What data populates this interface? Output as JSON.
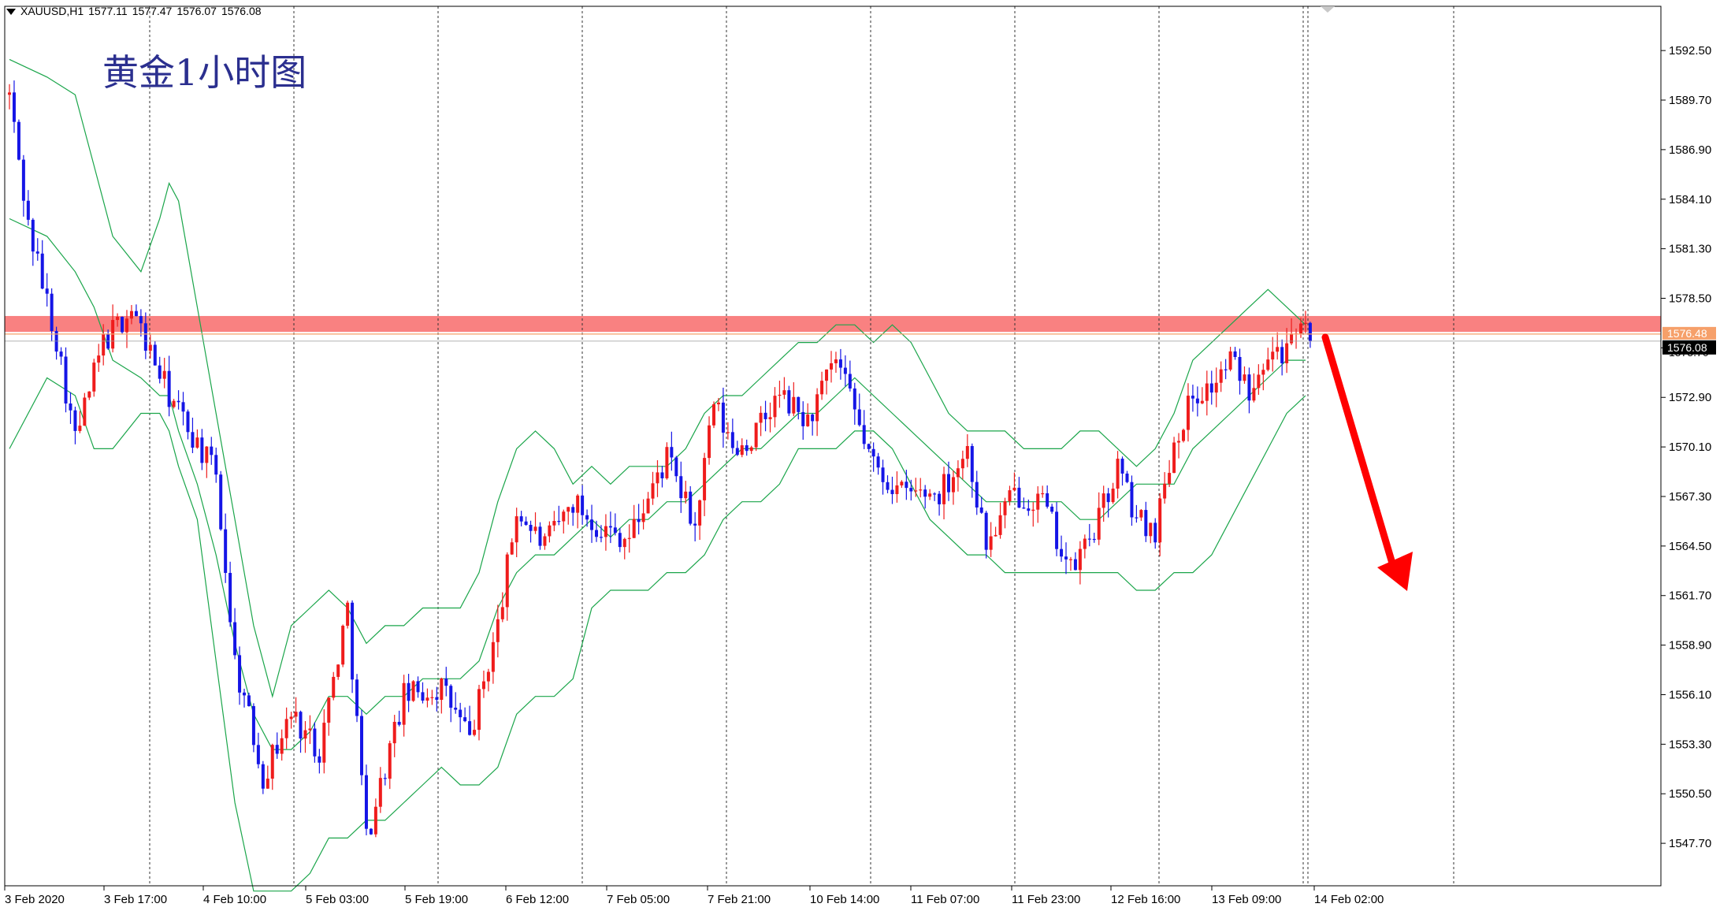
{
  "header": {
    "symbol": "XAUUSD,H1",
    "open": "1577.11",
    "high": "1577.47",
    "low": "1576.07",
    "close": "1576.08"
  },
  "title": "黄金1小时图",
  "colors": {
    "bull": "#ef1c1c",
    "bear": "#1515e6",
    "band": "#1aa54a",
    "zone": "#f98181",
    "price_line": "#f6a06a",
    "arrow": "#ff0000",
    "grid": "#333333"
  },
  "price_labels": {
    "upper": "1576.48",
    "current": "1576.08",
    "below": "1575.70"
  },
  "chart_data": {
    "type": "candlestick",
    "ylim": [
      1545.3,
      1595.0
    ],
    "y_ticks": [
      1592.5,
      1589.7,
      1586.9,
      1584.1,
      1581.3,
      1578.5,
      1575.7,
      1572.9,
      1570.1,
      1567.3,
      1564.5,
      1561.7,
      1558.9,
      1556.1,
      1553.3,
      1550.5,
      1547.7
    ],
    "x_ticks": [
      "3 Feb 2020",
      "3 Feb 17:00",
      "4 Feb 10:00",
      "5 Feb 03:00",
      "5 Feb 19:00",
      "6 Feb 12:00",
      "7 Feb 05:00",
      "7 Feb 21:00",
      "10 Feb 14:00",
      "11 Feb 07:00",
      "11 Feb 23:00",
      "12 Feb 16:00",
      "13 Feb 09:00",
      "14 Feb 02:00"
    ],
    "resistance_zone": [
      1576.6,
      1577.5
    ],
    "current_price": 1576.08,
    "anchors": [
      {
        "i": 0,
        "v": 1590.0
      },
      {
        "i": 4,
        "v": 1582.6
      },
      {
        "i": 10,
        "v": 1576.2
      },
      {
        "i": 14,
        "v": 1570.5
      },
      {
        "i": 20,
        "v": 1576.0
      },
      {
        "i": 26,
        "v": 1577.9
      },
      {
        "i": 34,
        "v": 1573.0
      },
      {
        "i": 44,
        "v": 1568.5
      },
      {
        "i": 48,
        "v": 1558.0
      },
      {
        "i": 54,
        "v": 1551.5
      },
      {
        "i": 60,
        "v": 1555.0
      },
      {
        "i": 66,
        "v": 1553.0
      },
      {
        "i": 72,
        "v": 1561.0
      },
      {
        "i": 76,
        "v": 1548.0
      },
      {
        "i": 84,
        "v": 1556.0
      },
      {
        "i": 92,
        "v": 1556.5
      },
      {
        "i": 98,
        "v": 1553.6
      },
      {
        "i": 104,
        "v": 1560.0
      },
      {
        "i": 108,
        "v": 1566.5
      },
      {
        "i": 114,
        "v": 1564.5
      },
      {
        "i": 120,
        "v": 1567.0
      },
      {
        "i": 126,
        "v": 1565.5
      },
      {
        "i": 132,
        "v": 1565.0
      },
      {
        "i": 140,
        "v": 1569.5
      },
      {
        "i": 146,
        "v": 1565.5
      },
      {
        "i": 150,
        "v": 1572.5
      },
      {
        "i": 154,
        "v": 1570.0
      },
      {
        "i": 158,
        "v": 1570.5
      },
      {
        "i": 164,
        "v": 1573.0
      },
      {
        "i": 170,
        "v": 1571.5
      },
      {
        "i": 176,
        "v": 1575.0
      },
      {
        "i": 180,
        "v": 1572.0
      },
      {
        "i": 184,
        "v": 1569.0
      },
      {
        "i": 190,
        "v": 1567.5
      },
      {
        "i": 198,
        "v": 1567.5
      },
      {
        "i": 204,
        "v": 1570.0
      },
      {
        "i": 208,
        "v": 1564.5
      },
      {
        "i": 214,
        "v": 1567.5
      },
      {
        "i": 220,
        "v": 1567.0
      },
      {
        "i": 226,
        "v": 1563.0
      },
      {
        "i": 232,
        "v": 1566.0
      },
      {
        "i": 236,
        "v": 1569.0
      },
      {
        "i": 240,
        "v": 1566.0
      },
      {
        "i": 244,
        "v": 1565.5
      },
      {
        "i": 248,
        "v": 1570.5
      },
      {
        "i": 252,
        "v": 1573.0
      },
      {
        "i": 256,
        "v": 1573.5
      },
      {
        "i": 260,
        "v": 1575.0
      },
      {
        "i": 264,
        "v": 1573.5
      },
      {
        "i": 268,
        "v": 1575.8
      },
      {
        "i": 272,
        "v": 1575.5
      },
      {
        "i": 276,
        "v": 1576.6
      },
      {
        "i": 277,
        "v": 1576.08
      }
    ],
    "bands": {
      "upper": [
        [
          0,
          1592
        ],
        [
          8,
          1591
        ],
        [
          14,
          1590
        ],
        [
          18,
          1586
        ],
        [
          22,
          1582
        ],
        [
          28,
          1580
        ],
        [
          32,
          1583
        ],
        [
          34,
          1585
        ],
        [
          36,
          1584
        ],
        [
          40,
          1578
        ],
        [
          44,
          1572
        ],
        [
          48,
          1566
        ],
        [
          52,
          1560
        ],
        [
          56,
          1556
        ],
        [
          60,
          1560
        ],
        [
          64,
          1561
        ],
        [
          68,
          1562
        ],
        [
          72,
          1561
        ],
        [
          76,
          1559
        ],
        [
          80,
          1560
        ],
        [
          84,
          1560
        ],
        [
          88,
          1561
        ],
        [
          92,
          1561
        ],
        [
          96,
          1561
        ],
        [
          100,
          1563
        ],
        [
          104,
          1567
        ],
        [
          108,
          1570
        ],
        [
          112,
          1571
        ],
        [
          116,
          1570
        ],
        [
          120,
          1568
        ],
        [
          124,
          1569
        ],
        [
          128,
          1568
        ],
        [
          132,
          1569
        ],
        [
          136,
          1569
        ],
        [
          140,
          1569
        ],
        [
          144,
          1570
        ],
        [
          148,
          1572
        ],
        [
          152,
          1573
        ],
        [
          156,
          1573
        ],
        [
          160,
          1574
        ],
        [
          164,
          1575
        ],
        [
          168,
          1576
        ],
        [
          172,
          1576
        ],
        [
          176,
          1577
        ],
        [
          180,
          1577
        ],
        [
          184,
          1576
        ],
        [
          188,
          1577
        ],
        [
          192,
          1576
        ],
        [
          196,
          1574
        ],
        [
          200,
          1572
        ],
        [
          204,
          1571
        ],
        [
          208,
          1571
        ],
        [
          212,
          1571
        ],
        [
          216,
          1570
        ],
        [
          220,
          1570
        ],
        [
          224,
          1570
        ],
        [
          228,
          1571
        ],
        [
          232,
          1571
        ],
        [
          236,
          1570
        ],
        [
          240,
          1569
        ],
        [
          244,
          1570
        ],
        [
          248,
          1572
        ],
        [
          252,
          1575
        ],
        [
          256,
          1576
        ],
        [
          260,
          1577
        ],
        [
          264,
          1578
        ],
        [
          268,
          1579
        ],
        [
          272,
          1578
        ],
        [
          276,
          1577
        ]
      ],
      "mid": [
        [
          0,
          1583
        ],
        [
          8,
          1582
        ],
        [
          14,
          1580
        ],
        [
          18,
          1578
        ],
        [
          22,
          1575
        ],
        [
          28,
          1574
        ],
        [
          32,
          1573
        ],
        [
          34,
          1573
        ],
        [
          36,
          1571
        ],
        [
          40,
          1568
        ],
        [
          44,
          1564
        ],
        [
          48,
          1559
        ],
        [
          52,
          1555
        ],
        [
          56,
          1553
        ],
        [
          60,
          1553
        ],
        [
          64,
          1554
        ],
        [
          68,
          1556
        ],
        [
          72,
          1556
        ],
        [
          76,
          1555
        ],
        [
          80,
          1556
        ],
        [
          84,
          1556
        ],
        [
          88,
          1557
        ],
        [
          92,
          1557
        ],
        [
          96,
          1557
        ],
        [
          100,
          1558
        ],
        [
          104,
          1561
        ],
        [
          108,
          1563
        ],
        [
          112,
          1564
        ],
        [
          116,
          1564
        ],
        [
          120,
          1565
        ],
        [
          124,
          1566
        ],
        [
          128,
          1565
        ],
        [
          132,
          1566
        ],
        [
          136,
          1566
        ],
        [
          140,
          1567
        ],
        [
          144,
          1567
        ],
        [
          148,
          1568
        ],
        [
          152,
          1569
        ],
        [
          156,
          1570
        ],
        [
          160,
          1570
        ],
        [
          164,
          1571
        ],
        [
          168,
          1572
        ],
        [
          172,
          1572
        ],
        [
          176,
          1573
        ],
        [
          180,
          1574
        ],
        [
          184,
          1573
        ],
        [
          188,
          1572
        ],
        [
          192,
          1571
        ],
        [
          196,
          1570
        ],
        [
          200,
          1569
        ],
        [
          204,
          1568
        ],
        [
          208,
          1567
        ],
        [
          212,
          1567
        ],
        [
          216,
          1567
        ],
        [
          220,
          1567
        ],
        [
          224,
          1567
        ],
        [
          228,
          1566
        ],
        [
          232,
          1566
        ],
        [
          236,
          1567
        ],
        [
          240,
          1568
        ],
        [
          244,
          1568
        ],
        [
          248,
          1568
        ],
        [
          252,
          1570
        ],
        [
          256,
          1571
        ],
        [
          260,
          1572
        ],
        [
          264,
          1573
        ],
        [
          268,
          1574
        ],
        [
          272,
          1575
        ],
        [
          276,
          1575
        ]
      ],
      "lower": [
        [
          0,
          1570
        ],
        [
          8,
          1574
        ],
        [
          14,
          1573
        ],
        [
          18,
          1570
        ],
        [
          22,
          1570
        ],
        [
          28,
          1572
        ],
        [
          32,
          1572
        ],
        [
          34,
          1571
        ],
        [
          36,
          1569
        ],
        [
          40,
          1566
        ],
        [
          44,
          1558
        ],
        [
          48,
          1550
        ],
        [
          52,
          1545
        ],
        [
          56,
          1545
        ],
        [
          60,
          1545
        ],
        [
          64,
          1546
        ],
        [
          68,
          1548
        ],
        [
          72,
          1548
        ],
        [
          76,
          1549
        ],
        [
          80,
          1549
        ],
        [
          84,
          1550
        ],
        [
          88,
          1551
        ],
        [
          92,
          1552
        ],
        [
          96,
          1551
        ],
        [
          100,
          1551
        ],
        [
          104,
          1552
        ],
        [
          108,
          1555
        ],
        [
          112,
          1556
        ],
        [
          116,
          1556
        ],
        [
          120,
          1557
        ],
        [
          124,
          1561
        ],
        [
          128,
          1562
        ],
        [
          132,
          1562
        ],
        [
          136,
          1562
        ],
        [
          140,
          1563
        ],
        [
          144,
          1563
        ],
        [
          148,
          1564
        ],
        [
          152,
          1566
        ],
        [
          156,
          1567
        ],
        [
          160,
          1567
        ],
        [
          164,
          1568
        ],
        [
          168,
          1570
        ],
        [
          172,
          1570
        ],
        [
          176,
          1570
        ],
        [
          180,
          1571
        ],
        [
          184,
          1571
        ],
        [
          188,
          1570
        ],
        [
          192,
          1568
        ],
        [
          196,
          1566
        ],
        [
          200,
          1565
        ],
        [
          204,
          1564
        ],
        [
          208,
          1564
        ],
        [
          212,
          1563
        ],
        [
          216,
          1563
        ],
        [
          220,
          1563
        ],
        [
          224,
          1563
        ],
        [
          228,
          1563
        ],
        [
          232,
          1563
        ],
        [
          236,
          1563
        ],
        [
          240,
          1562
        ],
        [
          244,
          1562
        ],
        [
          248,
          1563
        ],
        [
          252,
          1563
        ],
        [
          256,
          1564
        ],
        [
          260,
          1566
        ],
        [
          264,
          1568
        ],
        [
          268,
          1570
        ],
        [
          272,
          1572
        ],
        [
          276,
          1573
        ]
      ]
    },
    "prediction_arrow": "down"
  }
}
